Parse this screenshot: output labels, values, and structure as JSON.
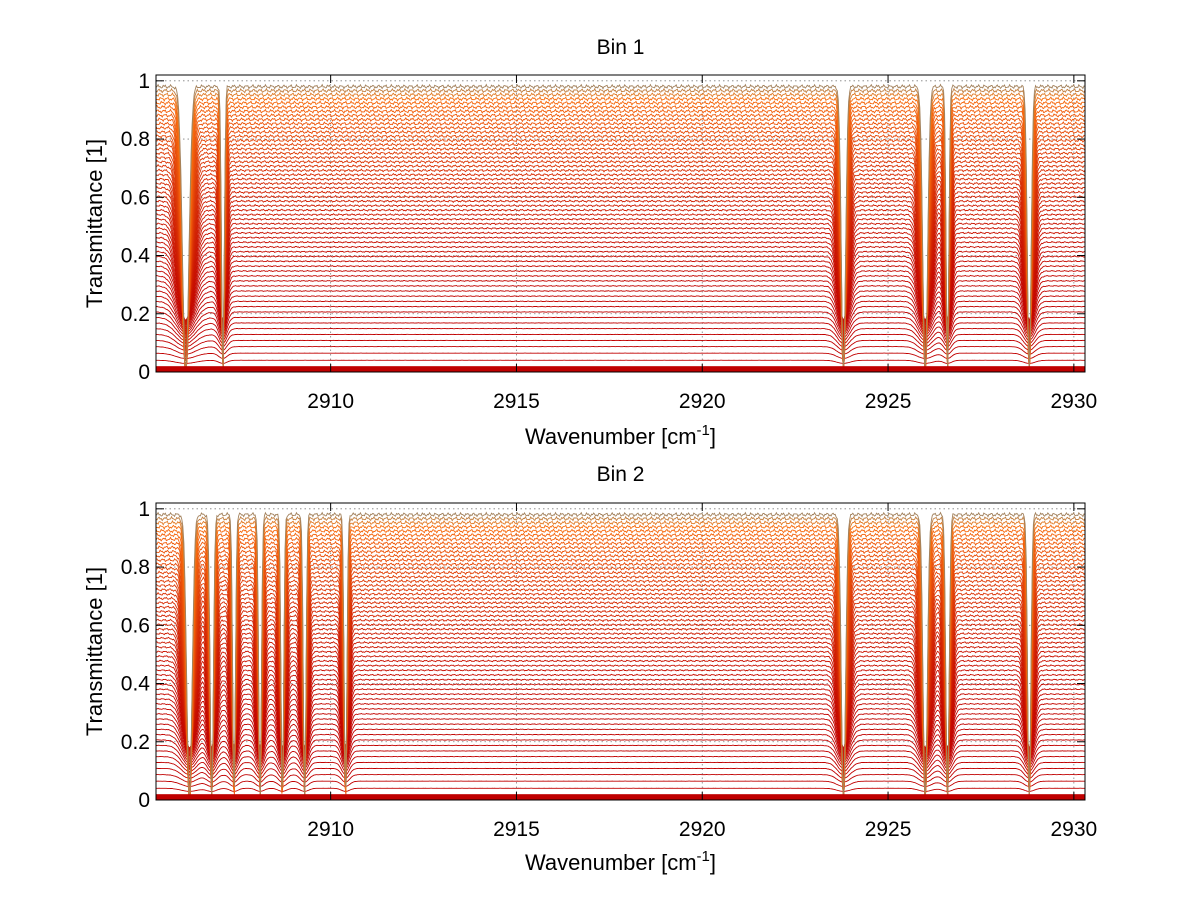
{
  "chart_data": [
    {
      "type": "line",
      "title": "Bin 1",
      "xlabel": "Wavenumber [cm",
      "xlabel_sup": "-1",
      "xlabel_end": "]",
      "ylabel": "Transmittance [1]",
      "xlim": [
        2905.3,
        2930.3
      ],
      "ylim": [
        0,
        1.02
      ],
      "xticks": [
        2910,
        2915,
        2920,
        2925,
        2930
      ],
      "xtick_labels": [
        "2910",
        "2915",
        "2920",
        "2925",
        "2930"
      ],
      "yticks": [
        0,
        0.2,
        0.4,
        0.6,
        0.8,
        1
      ],
      "ytick_labels": [
        "0",
        "0.2",
        "0.4",
        "0.6",
        "0.8",
        "1"
      ],
      "grid": true,
      "series_description_values": {
        "trace_count": 60,
        "baseline_range": [
          0.01,
          0.98
        ],
        "absorption_lines": [
          {
            "x": 2906.1,
            "width": 0.12
          },
          {
            "x": 2907.1,
            "width": 0.05
          },
          {
            "x": 2923.8,
            "width": 0.08
          },
          {
            "x": 2926.0,
            "width": 0.09
          },
          {
            "x": 2926.6,
            "width": 0.05
          },
          {
            "x": 2928.8,
            "width": 0.07
          }
        ]
      }
    },
    {
      "type": "line",
      "title": "Bin 2",
      "xlabel": "Wavenumber [cm",
      "xlabel_sup": "-1",
      "xlabel_end": "]",
      "ylabel": "Transmittance [1]",
      "xlim": [
        2905.3,
        2930.3
      ],
      "ylim": [
        0,
        1.02
      ],
      "xticks": [
        2910,
        2915,
        2920,
        2925,
        2930
      ],
      "xtick_labels": [
        "2910",
        "2915",
        "2920",
        "2925",
        "2930"
      ],
      "yticks": [
        0,
        0.2,
        0.4,
        0.6,
        0.8,
        1
      ],
      "ytick_labels": [
        "0",
        "0.2",
        "0.4",
        "0.6",
        "0.8",
        "1"
      ],
      "grid": true,
      "series_description_values": {
        "trace_count": 60,
        "baseline_range": [
          0.01,
          0.98
        ],
        "absorption_lines": [
          {
            "x": 2906.2,
            "width": 0.1
          },
          {
            "x": 2906.8,
            "width": 0.06
          },
          {
            "x": 2907.4,
            "width": 0.05
          },
          {
            "x": 2908.1,
            "width": 0.05
          },
          {
            "x": 2908.7,
            "width": 0.05
          },
          {
            "x": 2909.3,
            "width": 0.05
          },
          {
            "x": 2910.4,
            "width": 0.05
          },
          {
            "x": 2923.8,
            "width": 0.08
          },
          {
            "x": 2926.0,
            "width": 0.08
          },
          {
            "x": 2926.6,
            "width": 0.06
          },
          {
            "x": 2928.8,
            "width": 0.06
          }
        ]
      }
    }
  ],
  "colors": {
    "low_trace": "#c00000",
    "high_trace": "#ff7a10",
    "top_noise": "#1a8fd0"
  }
}
